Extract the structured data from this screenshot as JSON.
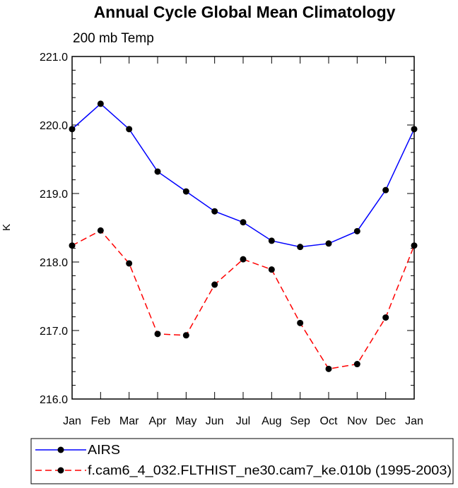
{
  "chart_data": {
    "type": "line",
    "title": "Annual Cycle Global Mean Climatology",
    "subtitle": "200 mb Temp",
    "xlabel": "",
    "ylabel": "K",
    "categories": [
      "Jan",
      "Feb",
      "Mar",
      "Apr",
      "May",
      "Jun",
      "Jul",
      "Aug",
      "Sep",
      "Oct",
      "Nov",
      "Dec",
      "Jan"
    ],
    "ylim": [
      216.0,
      221.0
    ],
    "yticks": [
      216.0,
      217.0,
      218.0,
      219.0,
      220.0,
      221.0
    ],
    "ytick_labels": [
      "216.0",
      "217.0",
      "218.0",
      "219.0",
      "220.0",
      "221.0"
    ],
    "legend_position": "bottom",
    "series": [
      {
        "name": "AIRS",
        "color": "#0000ff",
        "dash": "solid",
        "values": [
          219.94,
          220.31,
          219.94,
          219.32,
          219.03,
          218.74,
          218.58,
          218.31,
          218.22,
          218.27,
          218.45,
          219.05,
          219.94
        ]
      },
      {
        "name": "f.cam6_4_032.FLTHIST_ne30.cam7_ke.010b (1995-2003)",
        "color": "#ff0000",
        "dash": "dashed",
        "values": [
          218.24,
          218.46,
          217.98,
          216.95,
          216.93,
          217.67,
          218.04,
          217.89,
          217.11,
          216.44,
          216.51,
          217.19,
          218.24
        ]
      }
    ]
  }
}
